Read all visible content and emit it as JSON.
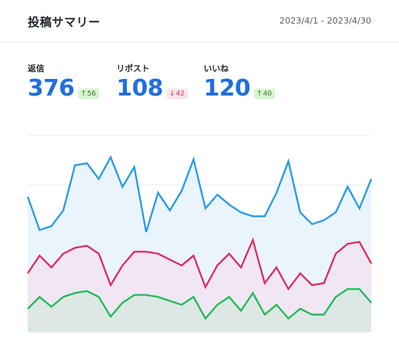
{
  "header": {
    "title": "投稿サマリー",
    "date_range": "2023/4/1 - 2023/4/30"
  },
  "metrics": [
    {
      "label": "返信",
      "value": "376",
      "delta": "56",
      "direction": "up",
      "arrow": "↑"
    },
    {
      "label": "リポスト",
      "value": "108",
      "delta": "42",
      "direction": "down",
      "arrow": "↓"
    },
    {
      "label": "いいね",
      "value": "120",
      "delta": "40",
      "direction": "up",
      "arrow": "↑"
    }
  ],
  "colors": {
    "blue": "#2a9be6",
    "red": "#dc2f64",
    "green": "#22bb5c",
    "blue_fill": "#eaf4fd",
    "red_fill": "#f1e6f3",
    "green_fill": "#dde8e4",
    "grid": "#e6e8eb"
  },
  "chart_data": {
    "type": "area",
    "x": [
      1,
      2,
      3,
      4,
      5,
      6,
      7,
      8,
      9,
      10,
      11,
      12,
      13,
      14,
      15,
      16,
      17,
      18,
      19,
      20,
      21,
      22,
      23,
      24,
      25,
      26,
      27,
      28,
      29,
      30
    ],
    "ylim": [
      0,
      100
    ],
    "grid": true,
    "series": [
      {
        "values": [
          69,
          52,
          54,
          62,
          85,
          86,
          78,
          89,
          74,
          84,
          51,
          71,
          62,
          72,
          88,
          63,
          70,
          65,
          61,
          59,
          59,
          71,
          87,
          61,
          55,
          57,
          61,
          74,
          63,
          78
        ]
      },
      {
        "values": [
          30,
          39,
          33,
          40,
          43,
          44,
          40,
          24,
          34,
          41,
          41,
          40,
          37,
          34,
          39,
          23,
          34,
          40,
          33,
          47,
          25,
          33,
          22,
          30,
          24,
          25,
          40,
          45,
          46,
          35
        ]
      },
      {
        "values": [
          12,
          18,
          13,
          18,
          20,
          21,
          18,
          8,
          15,
          19,
          19,
          18,
          16,
          14,
          18,
          7,
          14,
          18,
          11,
          20,
          9,
          14,
          7,
          12,
          9,
          9,
          18,
          22,
          22,
          15
        ]
      }
    ]
  }
}
